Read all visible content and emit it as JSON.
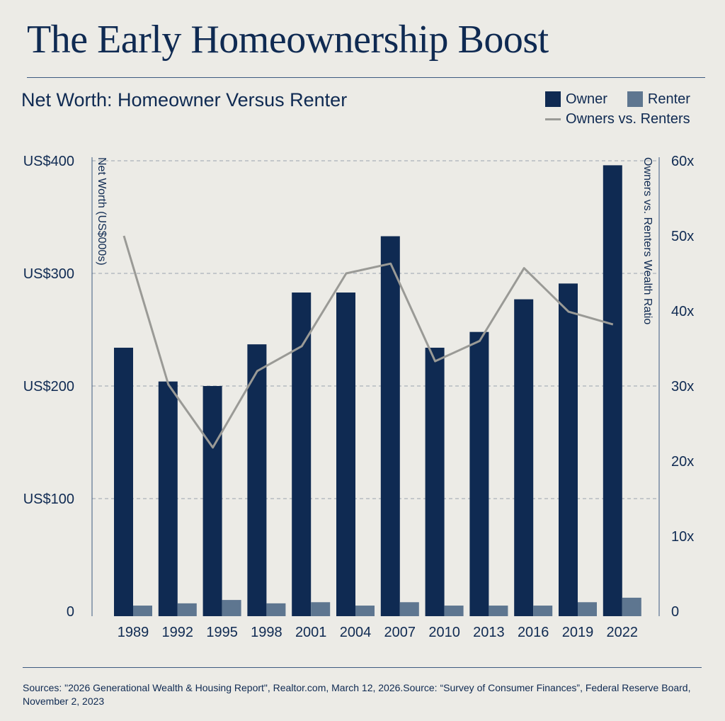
{
  "header": {
    "title": "The Early Homeownership Boost",
    "subtitle": "Net Worth: Homeowner Versus Renter"
  },
  "legend": {
    "owner": "Owner",
    "renter": "Renter",
    "ratio": "Owners vs. Renters"
  },
  "footer": {
    "sources": "Sources: \"2026 Generational Wealth & Housing Report\", Realtor.com, March 12, 2026.Source: “Survey of Consumer Finances”, Federal Reserve Board, November 2, 2023"
  },
  "colors": {
    "owner": "#0f2a52",
    "renter": "#5e7690",
    "ratio_line": "#9a9a96",
    "background": "#ecebe6"
  },
  "chart_data": {
    "type": "bar",
    "categories": [
      "1989",
      "1992",
      "1995",
      "1998",
      "2001",
      "2004",
      "2007",
      "2010",
      "2013",
      "2016",
      "2019",
      "2022"
    ],
    "series": [
      {
        "name": "Owner",
        "type": "bar",
        "axis": "left",
        "values": [
          234,
          204,
          200,
          237,
          283,
          283,
          333,
          234,
          248,
          277,
          291,
          396
        ]
      },
      {
        "name": "Renter",
        "type": "bar",
        "axis": "left",
        "values": [
          5,
          7,
          10,
          7,
          8,
          5,
          8,
          5,
          5,
          5,
          8,
          12
        ]
      },
      {
        "name": "Owners vs. Renters",
        "type": "line",
        "axis": "right",
        "values": [
          50,
          30.2,
          21.8,
          32,
          35.3,
          45,
          46.3,
          33.3,
          36,
          45.7,
          39.9,
          38.2
        ]
      }
    ],
    "ylabel": "Net Worth (US$000s)",
    "y2label": "Owners vs. Renters Wealth Ratio",
    "ylim": [
      0,
      400
    ],
    "y2lim": [
      0,
      60
    ],
    "yticks": [
      "0",
      "US$100",
      "US$200",
      "US$300",
      "US$400"
    ],
    "y2ticks": [
      "0",
      "10x",
      "20x",
      "30x",
      "40x",
      "50x",
      "60x"
    ],
    "grid": true,
    "legend_position": "top-right"
  }
}
